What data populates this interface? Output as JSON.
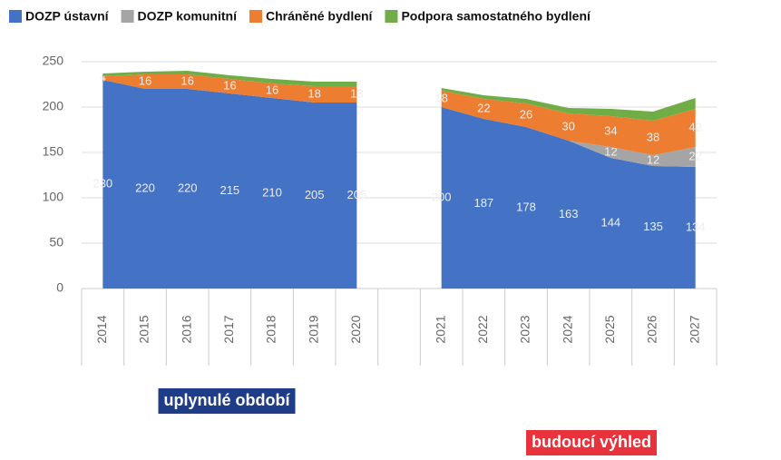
{
  "chart_data": {
    "type": "area",
    "categories": [
      "2014",
      "2015",
      "2016",
      "2017",
      "2018",
      "2019",
      "2020",
      null,
      "2021",
      "2022",
      "2023",
      "2024",
      "2025",
      "2026",
      "2027"
    ],
    "series": [
      {
        "name": "DOZP ústavní",
        "color": "#4472c4",
        "values": [
          230,
          220,
          220,
          215,
          210,
          205,
          205,
          null,
          200,
          187,
          178,
          163,
          144,
          135,
          134
        ]
      },
      {
        "name": "DOZP komunitní",
        "color": "#a5a5a5",
        "values": [
          0,
          0,
          0,
          0,
          0,
          0,
          0,
          null,
          0,
          0,
          0,
          0,
          12,
          12,
          22
        ]
      },
      {
        "name": "Chráněné bydlení",
        "color": "#ed7d31",
        "values": [
          4,
          16,
          16,
          16,
          16,
          18,
          18,
          null,
          18,
          22,
          26,
          30,
          34,
          38,
          42
        ]
      },
      {
        "name": "Podpora samostatného bydlení",
        "color": "#70ad47",
        "values": [
          3,
          3,
          4,
          4,
          5,
          5,
          5,
          null,
          3,
          4,
          5,
          6,
          8,
          10,
          12
        ]
      }
    ],
    "ylim": [
      0,
      250
    ],
    "yticks": [
      0,
      50,
      100,
      150,
      200,
      250
    ],
    "annotations": [
      "uplynulé období",
      "budoucí výhled"
    ],
    "grid": true
  }
}
